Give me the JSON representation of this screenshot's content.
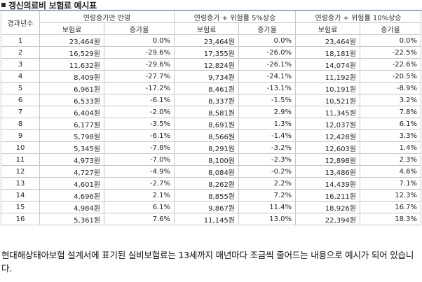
{
  "title": "갱신의료비 보험료 예시표",
  "table": {
    "year_header": "경과년수",
    "groups": [
      {
        "label": "연령증가만 반영",
        "sub": [
          "보험료",
          "증가율"
        ]
      },
      {
        "label": "연령증가 + 위험률 5%상승",
        "sub": [
          "보험료",
          "증가율"
        ]
      },
      {
        "label": "연령증가 + 위험률 10%상승",
        "sub": [
          "보험료",
          "증가율"
        ]
      }
    ],
    "rows": [
      [
        "1",
        "23,464원",
        "0.0%",
        "23,464원",
        "0.0%",
        "23,464원",
        "0.0%"
      ],
      [
        "2",
        "16,529원",
        "-29.6%",
        "17,355원",
        "-26.0%",
        "18,181원",
        "-22.5%"
      ],
      [
        "3",
        "11,632원",
        "-29.6%",
        "12,824원",
        "-26.1%",
        "14,074원",
        "-22.6%"
      ],
      [
        "4",
        "8,409원",
        "-27.7%",
        "9,734원",
        "-24.1%",
        "11,192원",
        "-20.5%"
      ],
      [
        "5",
        "6,961원",
        "-17.2%",
        "8,461원",
        "-13.1%",
        "10,191원",
        "-8.9%"
      ],
      [
        "6",
        "6,533원",
        "-6.1%",
        "8,337원",
        "-1.5%",
        "10,521원",
        "3.2%"
      ],
      [
        "7",
        "6,404원",
        "-2.0%",
        "8,581원",
        "2.9%",
        "11,345원",
        "7.8%"
      ],
      [
        "8",
        "6,177원",
        "-3.5%",
        "8,691원",
        "1.3%",
        "12,037원",
        "6.1%"
      ],
      [
        "9",
        "5,798원",
        "-6.1%",
        "8,566원",
        "-1.4%",
        "12,428원",
        "3.3%"
      ],
      [
        "10",
        "5,345원",
        "-7.8%",
        "8,291원",
        "-3.2%",
        "12,603원",
        "1.4%"
      ],
      [
        "11",
        "4,973원",
        "-7.0%",
        "8,100원",
        "-2.3%",
        "12,898원",
        "2.3%"
      ],
      [
        "12",
        "4,727원",
        "-4.9%",
        "8,084원",
        "-0.2%",
        "13,486원",
        "4.6%"
      ],
      [
        "13",
        "4,601원",
        "-2.7%",
        "8,262원",
        "2.2%",
        "14,439원",
        "7.1%"
      ],
      [
        "14",
        "4,696원",
        "2.1%",
        "8,855원",
        "7.2%",
        "16,211원",
        "12.3%"
      ],
      [
        "15",
        "4,984원",
        "6.1%",
        "9,867원",
        "11.4%",
        "18,926원",
        "16.7%"
      ],
      [
        "16",
        "5,361원",
        "7.6%",
        "11,145원",
        "13.0%",
        "22,394원",
        "18.3%"
      ]
    ]
  },
  "caption": "현대해상태아보험 설계서에 표기된 실비보험료는 13세까지 매년마다 조금씩 줄어드는 내용으로 예시가 되어 있습니다."
}
